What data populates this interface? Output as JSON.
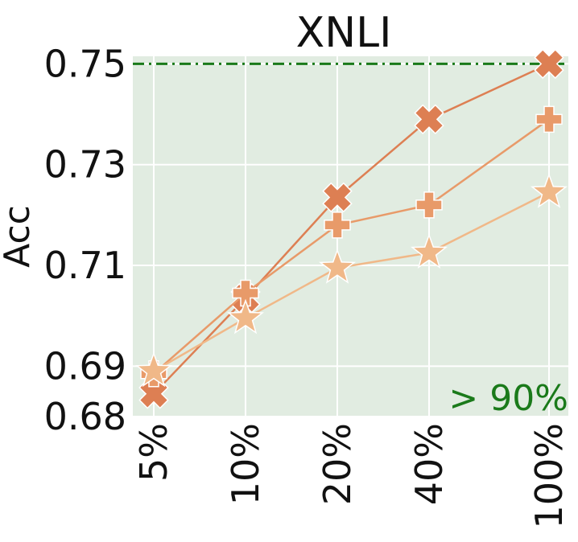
{
  "chart_data": {
    "type": "line",
    "title": "XNLI",
    "xlabel": "",
    "ylabel": "Acc",
    "categories": [
      "5%",
      "10%",
      "20%",
      "40%",
      "100%"
    ],
    "yticks": [
      "0.68",
      "0.69",
      "0.71",
      "0.73",
      "0.75"
    ],
    "ytick_values": [
      0.68,
      0.69,
      0.71,
      0.73,
      0.75
    ],
    "ylim": [
      0.68,
      0.7515
    ],
    "grid": true,
    "legend": "none",
    "reference_line": {
      "value": 0.75,
      "style": "dash-dot",
      "color": "#1a7a1a"
    },
    "annotation": {
      "text": "> 90%",
      "color": "#1a7a1a",
      "position": "bottom-right"
    },
    "series": [
      {
        "marker": "x-cross",
        "color": "#dd7f53",
        "values": [
          0.6845,
          0.7035,
          0.7235,
          0.739,
          0.75
        ]
      },
      {
        "marker": "plus",
        "color": "#e89a69",
        "values": [
          0.6885,
          0.7045,
          0.718,
          0.722,
          0.739
        ]
      },
      {
        "marker": "star",
        "color": "#f0b888",
        "values": [
          0.689,
          0.6995,
          0.7095,
          0.7125,
          0.7245
        ]
      }
    ]
  }
}
